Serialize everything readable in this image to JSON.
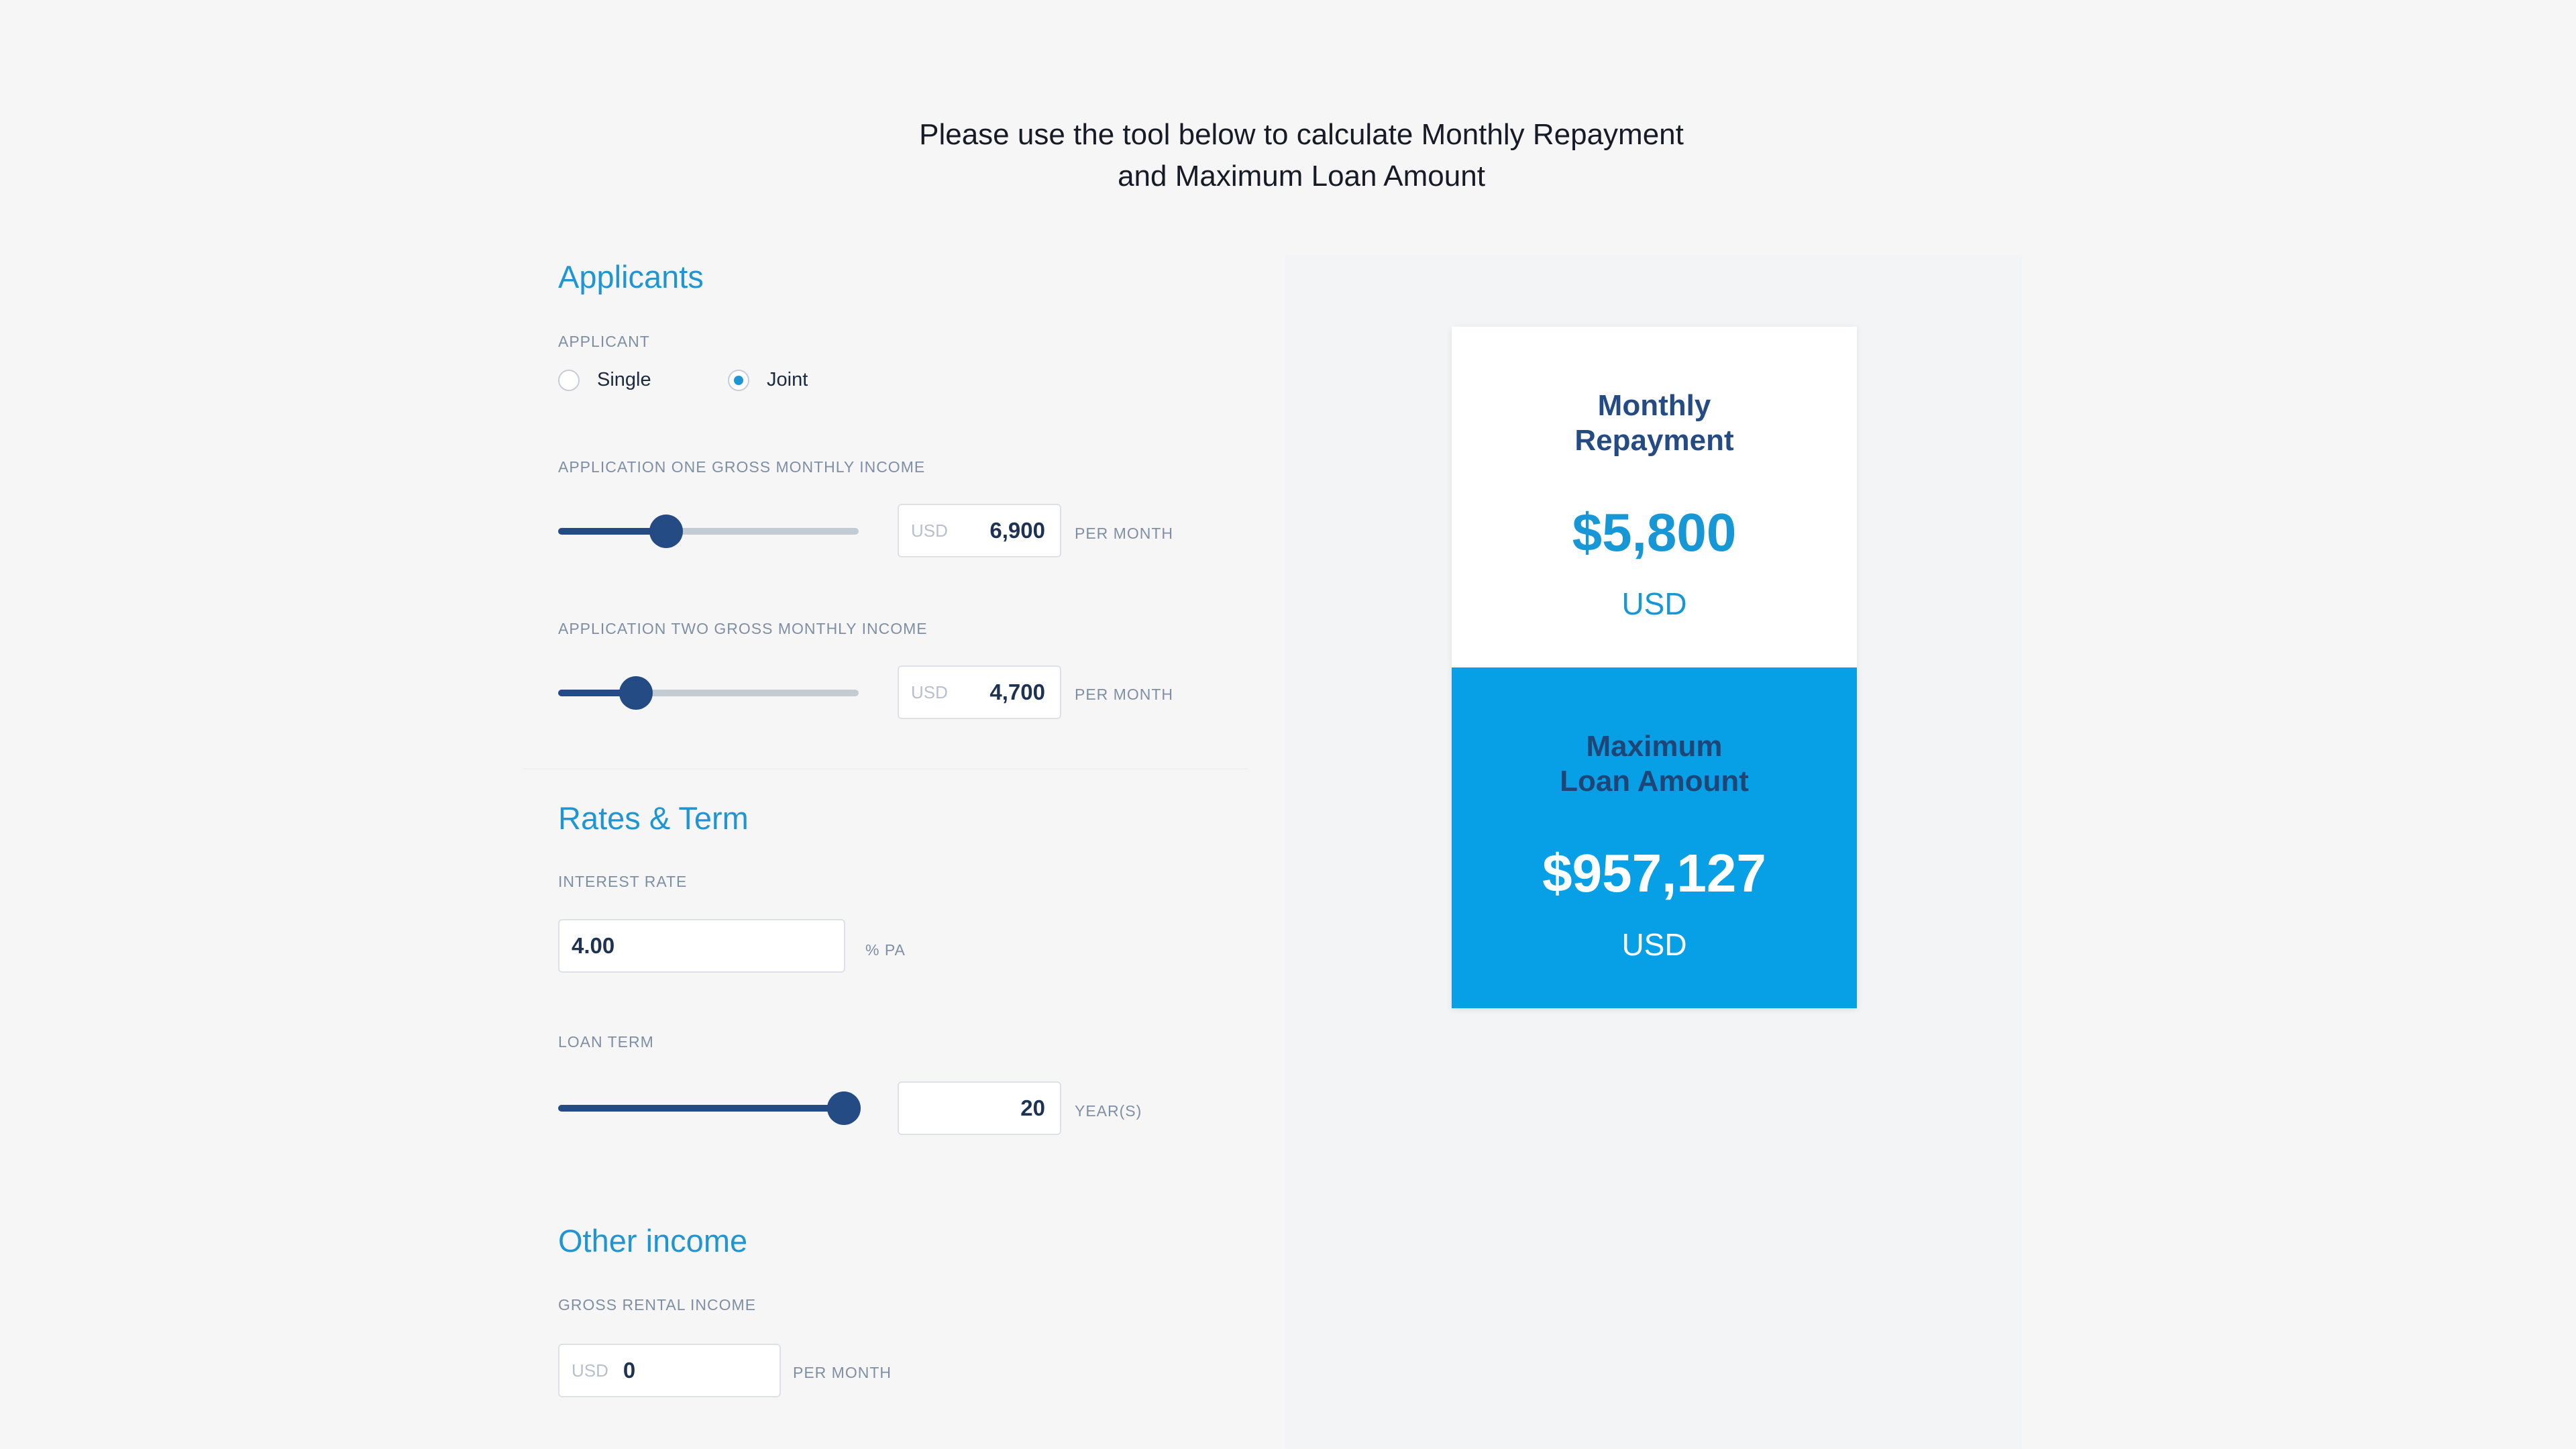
{
  "intro": {
    "line1": "Please use the tool below to calculate Monthly Repayment",
    "line2": "and Maximum Loan Amount"
  },
  "applicants": {
    "title": "Applicants",
    "applicant_label": "APPLICANT",
    "options": [
      "Single",
      "Joint"
    ],
    "selected": "Joint",
    "income_one": {
      "label": "APPLICATION ONE GROSS MONTHLY INCOME",
      "currency": "USD",
      "value": "6,900",
      "unit": "PER MONTH",
      "slider_fraction": 0.36
    },
    "income_two": {
      "label": "APPLICATION TWO GROSS MONTHLY INCOME",
      "currency": "USD",
      "value": "4,700",
      "unit": "PER MONTH",
      "slider_fraction": 0.26
    }
  },
  "rates_term": {
    "title": "Rates & Term",
    "interest_label": "INTEREST RATE",
    "interest_value": "4.00",
    "interest_unit": "% PA",
    "loan_term_label": "LOAN TERM",
    "loan_term_value": "20",
    "loan_term_unit": "YEAR(S)",
    "slider_fraction": 0.95
  },
  "other_income": {
    "title": "Other income",
    "rental_label": "GROSS RENTAL INCOME",
    "currency": "USD",
    "value": "0",
    "unit": "PER MONTH"
  },
  "results": {
    "monthly": {
      "title": "Monthly\nRepayment",
      "amount": "$5,800",
      "currency": "USD"
    },
    "max_loan": {
      "title": "Maximum\nLoan Amount",
      "amount": "$957,127",
      "currency": "USD"
    }
  },
  "colors": {
    "accent": "#1f96d3",
    "slider": "#244b84",
    "card_blue": "#07a0e6"
  }
}
